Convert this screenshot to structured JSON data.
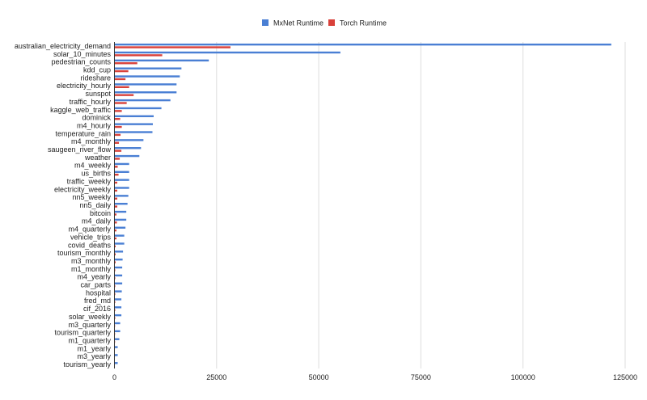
{
  "chart_data": {
    "type": "bar",
    "orientation": "horizontal",
    "title": "",
    "xlabel": "",
    "ylabel": "",
    "xlim": [
      0,
      125000
    ],
    "xticks": [
      "0",
      "25000",
      "50000",
      "75000",
      "100000",
      "125000"
    ],
    "grid": true,
    "legend_position": "top",
    "categories": [
      "australian_electricity_demand",
      "solar_10_minutes",
      "pedestrian_counts",
      "kdd_cup",
      "rideshare",
      "electricity_hourly",
      "sunspot",
      "traffic_hourly",
      "kaggle_web_traffic",
      "dominick",
      "m4_hourly",
      "temperature_rain",
      "m4_monthly",
      "saugeen_river_flow",
      "weather",
      "m4_weekly",
      "us_births",
      "traffic_weekly",
      "electricity_weekly",
      "nn5_weekly",
      "nn5_daily",
      "bitcoin",
      "m4_daily",
      "m4_quarterly",
      "vehicle_trips",
      "covid_deaths",
      "tourism_monthly",
      "m3_monthly",
      "m1_monthly",
      "m4_yearly",
      "car_parts",
      "hospital",
      "fred_md",
      "cif_2016",
      "solar_weekly",
      "m3_quarterly",
      "tourism_quarterly",
      "m1_quarterly",
      "m1_yearly",
      "m3_yearly",
      "tourism_yearly"
    ],
    "series": [
      {
        "name": "MxNet Runtime",
        "color": "#4a7fd4",
        "values": [
          121600,
          55300,
          23100,
          16400,
          16000,
          15200,
          15200,
          13700,
          11500,
          9600,
          9400,
          9300,
          7100,
          6500,
          6100,
          3600,
          3600,
          3600,
          3600,
          3400,
          3200,
          2900,
          2900,
          2700,
          2400,
          2400,
          2100,
          2000,
          1900,
          1900,
          1900,
          1800,
          1700,
          1700,
          1700,
          1400,
          1400,
          1200,
          800,
          800,
          800
        ]
      },
      {
        "name": "Torch Runtime",
        "color": "#d9413a",
        "values": [
          28400,
          11700,
          5600,
          3400,
          2700,
          3600,
          4700,
          3000,
          1800,
          1400,
          1800,
          1500,
          1100,
          1700,
          1300,
          800,
          1000,
          700,
          700,
          700,
          700,
          500,
          600,
          500,
          500,
          300,
          300,
          300,
          200,
          200,
          200,
          200,
          200,
          200,
          200,
          150,
          150,
          150,
          100,
          100,
          100
        ]
      }
    ]
  }
}
